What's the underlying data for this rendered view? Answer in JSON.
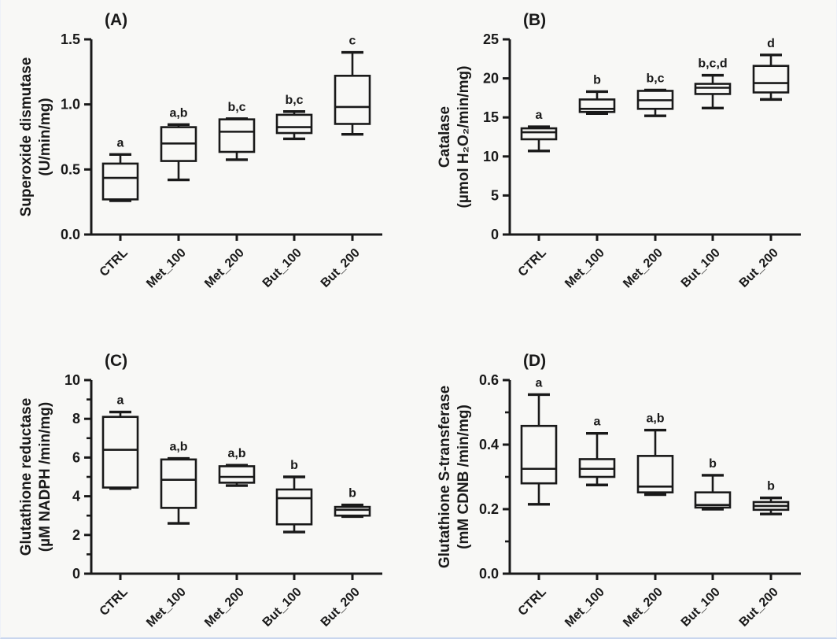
{
  "page": {
    "background": "#f8f8f6",
    "ink": "#191919",
    "frame_color": "#c9d6ee"
  },
  "chart_data": [
    {
      "type": "box",
      "panel_label": "(A)",
      "ylabel_line1": "Superoxide dismutase",
      "ylabel_line2": "(U/min/mg)",
      "ylim": [
        0,
        1.5
      ],
      "yticks": [
        "0.0",
        "0.5",
        "1.0",
        "1.5"
      ],
      "minor_ticks": false,
      "grid": false,
      "categories": [
        "CTRL",
        "Met_100",
        "Met_200",
        "But_100",
        "But_200"
      ],
      "boxes": [
        {
          "category": "CTRL",
          "min": 0.26,
          "q1": 0.27,
          "median": 0.435,
          "q3": 0.545,
          "max": 0.615,
          "letter": "a"
        },
        {
          "category": "Met_100",
          "min": 0.42,
          "q1": 0.565,
          "median": 0.7,
          "q3": 0.825,
          "max": 0.845,
          "letter": "a,b"
        },
        {
          "category": "Met_200",
          "min": 0.575,
          "q1": 0.635,
          "median": 0.79,
          "q3": 0.885,
          "max": 0.89,
          "letter": "b,c"
        },
        {
          "category": "But_100",
          "min": 0.735,
          "q1": 0.78,
          "median": 0.825,
          "q3": 0.92,
          "max": 0.945,
          "letter": "b,c"
        },
        {
          "category": "But_200",
          "min": 0.77,
          "q1": 0.85,
          "median": 0.98,
          "q3": 1.22,
          "max": 1.4,
          "letter": "c"
        }
      ]
    },
    {
      "type": "box",
      "panel_label": "(B)",
      "ylabel_line1": "Catalase",
      "ylabel_line2": "(µmol H₂O₂/min/mg)",
      "ylim": [
        0,
        25
      ],
      "yticks": [
        "0",
        "5",
        "10",
        "15",
        "20",
        "25"
      ],
      "minor_ticks": false,
      "grid": false,
      "categories": [
        "CTRL",
        "Met_100",
        "Met_200",
        "But_100",
        "But_200"
      ],
      "boxes": [
        {
          "category": "CTRL",
          "min": 10.7,
          "q1": 12.2,
          "median": 13.1,
          "q3": 13.6,
          "max": 13.8,
          "letter": "a"
        },
        {
          "category": "Met_100",
          "min": 15.5,
          "q1": 15.7,
          "median": 16.1,
          "q3": 17.3,
          "max": 18.3,
          "letter": "b"
        },
        {
          "category": "Met_200",
          "min": 15.2,
          "q1": 16.1,
          "median": 17.2,
          "q3": 18.4,
          "max": 18.5,
          "letter": "b,c"
        },
        {
          "category": "But_100",
          "min": 16.2,
          "q1": 18.0,
          "median": 18.8,
          "q3": 19.3,
          "max": 20.4,
          "letter": "b,c,d"
        },
        {
          "category": "But_200",
          "min": 17.3,
          "q1": 18.2,
          "median": 19.4,
          "q3": 21.6,
          "max": 23.0,
          "letter": "d"
        }
      ]
    },
    {
      "type": "box",
      "panel_label": "(C)",
      "ylabel_line1": "Glutathione reductase",
      "ylabel_line2": "(µM NADPH /min/mg)",
      "ylim": [
        0,
        10
      ],
      "yticks": [
        "0",
        "2",
        "4",
        "6",
        "8",
        "10"
      ],
      "minor_ticks": true,
      "grid": false,
      "categories": [
        "CTRL",
        "Met_100",
        "Met_200",
        "But_100",
        "But_200"
      ],
      "boxes": [
        {
          "category": "CTRL",
          "min": 4.4,
          "q1": 4.45,
          "median": 6.4,
          "q3": 8.1,
          "max": 8.35,
          "letter": "a"
        },
        {
          "category": "Met_100",
          "min": 2.6,
          "q1": 3.4,
          "median": 4.85,
          "q3": 5.9,
          "max": 5.95,
          "letter": "a,b"
        },
        {
          "category": "Met_200",
          "min": 4.55,
          "q1": 4.7,
          "median": 5.0,
          "q3": 5.55,
          "max": 5.6,
          "letter": "a,b"
        },
        {
          "category": "But_100",
          "min": 2.15,
          "q1": 2.55,
          "median": 3.9,
          "q3": 4.35,
          "max": 5.0,
          "letter": "b"
        },
        {
          "category": "But_200",
          "min": 2.95,
          "q1": 3.0,
          "median": 3.3,
          "q3": 3.45,
          "max": 3.55,
          "letter": "b"
        }
      ]
    },
    {
      "type": "box",
      "panel_label": "(D)",
      "ylabel_line1": "Glutathione S-transferase",
      "ylabel_line2": "(mM CDNB /min/mg)",
      "ylim": [
        0,
        0.6
      ],
      "yticks": [
        "0.0",
        "0.2",
        "0.4",
        "0.6"
      ],
      "minor_ticks": true,
      "grid": false,
      "categories": [
        "CTRL",
        "Met_100",
        "Met_200",
        "But_100",
        "But_200"
      ],
      "boxes": [
        {
          "category": "CTRL",
          "min": 0.215,
          "q1": 0.28,
          "median": 0.325,
          "q3": 0.458,
          "max": 0.555,
          "letter": "a"
        },
        {
          "category": "Met_100",
          "min": 0.275,
          "q1": 0.3,
          "median": 0.325,
          "q3": 0.355,
          "max": 0.435,
          "letter": "a"
        },
        {
          "category": "Met_200",
          "min": 0.245,
          "q1": 0.252,
          "median": 0.27,
          "q3": 0.365,
          "max": 0.445,
          "letter": "a,b"
        },
        {
          "category": "But_100",
          "min": 0.2,
          "q1": 0.205,
          "median": 0.213,
          "q3": 0.252,
          "max": 0.305,
          "letter": "b"
        },
        {
          "category": "But_200",
          "min": 0.185,
          "q1": 0.198,
          "median": 0.21,
          "q3": 0.222,
          "max": 0.235,
          "letter": "b"
        }
      ]
    }
  ]
}
